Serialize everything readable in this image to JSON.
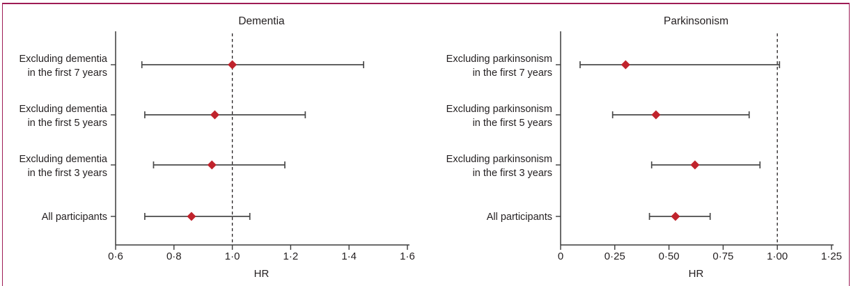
{
  "figure": {
    "background": "#ffffff",
    "border_color": "#9e1b55",
    "text_color": "#231f20",
    "axis_color": "#3a3a3a",
    "errorbar_color": "#4a4a4a",
    "marker_color": "#c0232c",
    "ref_line_color": "#231f20"
  },
  "chart_data": [
    {
      "type": "forest",
      "title": "Dementia",
      "xlabel": "HR",
      "xlim": [
        0.6,
        1.6
      ],
      "xticks": [
        0.6,
        0.8,
        1.0,
        1.2,
        1.4,
        1.6
      ],
      "xtick_labels": [
        "0·6",
        "0·8",
        "1·0",
        "1·2",
        "1·4",
        "1·6"
      ],
      "ref_line": 1.0,
      "grid": false,
      "rows": [
        {
          "label_lines": [
            "Excluding dementia",
            "in the first 7 years"
          ],
          "hr": 1.0,
          "ci_low": 0.69,
          "ci_high": 1.45
        },
        {
          "label_lines": [
            "Excluding dementia",
            "in the first 5 years"
          ],
          "hr": 0.94,
          "ci_low": 0.7,
          "ci_high": 1.25
        },
        {
          "label_lines": [
            "Excluding dementia",
            "in the first 3 years"
          ],
          "hr": 0.93,
          "ci_low": 0.73,
          "ci_high": 1.18
        },
        {
          "label_lines": [
            "All participants"
          ],
          "hr": 0.86,
          "ci_low": 0.7,
          "ci_high": 1.06
        }
      ]
    },
    {
      "type": "forest",
      "title": "Parkinsonism",
      "xlabel": "HR",
      "xlim": [
        0,
        1.25
      ],
      "xticks": [
        0,
        0.25,
        0.5,
        0.75,
        1.0,
        1.25
      ],
      "xtick_labels": [
        "0",
        "0·25",
        "0·50",
        "0·75",
        "1·00",
        "1·25"
      ],
      "ref_line": 1.0,
      "grid": false,
      "rows": [
        {
          "label_lines": [
            "Excluding parkinsonism",
            "in the first 7 years"
          ],
          "hr": 0.3,
          "ci_low": 0.09,
          "ci_high": 1.01
        },
        {
          "label_lines": [
            "Excluding parkinsonism",
            "in the first 5 years"
          ],
          "hr": 0.44,
          "ci_low": 0.24,
          "ci_high": 0.87
        },
        {
          "label_lines": [
            "Excluding parkinsonism",
            "in the first 3 years"
          ],
          "hr": 0.62,
          "ci_low": 0.42,
          "ci_high": 0.92
        },
        {
          "label_lines": [
            "All participants"
          ],
          "hr": 0.53,
          "ci_low": 0.41,
          "ci_high": 0.69
        }
      ]
    }
  ]
}
